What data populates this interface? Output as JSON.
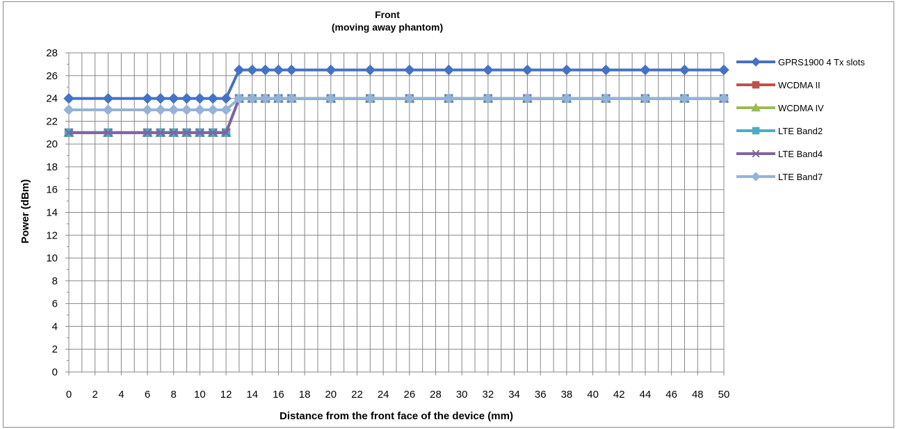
{
  "chart_data": {
    "type": "line",
    "title": "Front",
    "subtitle": "(moving away phantom)",
    "xlabel": "Distance from the front face of the device (mm)",
    "ylabel": "Power (dBm)",
    "x": [
      0,
      3,
      6,
      7,
      8,
      9,
      10,
      11,
      12,
      13,
      14,
      15,
      16,
      17,
      20,
      23,
      26,
      29,
      32,
      35,
      38,
      41,
      44,
      47,
      50
    ],
    "x_tick_labels": [
      "0",
      "2",
      "4",
      "6",
      "8",
      "10",
      "12",
      "14",
      "16",
      "18",
      "20",
      "22",
      "24",
      "26",
      "28",
      "30",
      "32",
      "34",
      "36",
      "38",
      "40",
      "42",
      "44",
      "46",
      "48",
      "50"
    ],
    "ylim": [
      0,
      28
    ],
    "y_tick_labels": [
      "0",
      "2",
      "4",
      "6",
      "8",
      "10",
      "12",
      "14",
      "16",
      "18",
      "20",
      "22",
      "24",
      "26",
      "28"
    ],
    "grid": true,
    "legend_position": "right",
    "series": [
      {
        "name": "GPRS1900  4 Tx slots",
        "color": "#4472C4",
        "marker": "diamond",
        "values": [
          24,
          24,
          24,
          24,
          24,
          24,
          24,
          24,
          24,
          26.5,
          26.5,
          26.5,
          26.5,
          26.5,
          26.5,
          26.5,
          26.5,
          26.5,
          26.5,
          26.5,
          26.5,
          26.5,
          26.5,
          26.5,
          26.5
        ]
      },
      {
        "name": "WCDMA II",
        "color": "#C0504D",
        "marker": "square",
        "values": [
          21,
          21,
          21,
          21,
          21,
          21,
          21,
          21,
          21,
          24,
          24,
          24,
          24,
          24,
          24,
          24,
          24,
          24,
          24,
          24,
          24,
          24,
          24,
          24,
          24
        ]
      },
      {
        "name": "WCDMA IV",
        "color": "#9BBB59",
        "marker": "triangle",
        "values": [
          21,
          21,
          21,
          21,
          21,
          21,
          21,
          21,
          21,
          24,
          24,
          24,
          24,
          24,
          24,
          24,
          24,
          24,
          24,
          24,
          24,
          24,
          24,
          24,
          24
        ]
      },
      {
        "name": "LTE Band2",
        "color": "#4BACC6",
        "marker": "square",
        "values": [
          21,
          21,
          21,
          21,
          21,
          21,
          21,
          21,
          21,
          24,
          24,
          24,
          24,
          24,
          24,
          24,
          24,
          24,
          24,
          24,
          24,
          24,
          24,
          24,
          24
        ]
      },
      {
        "name": "LTE Band4",
        "color": "#8064A2",
        "marker": "x",
        "values": [
          21,
          21,
          21,
          21,
          21,
          21,
          21,
          21,
          21,
          24,
          24,
          24,
          24,
          24,
          24,
          24,
          24,
          24,
          24,
          24,
          24,
          24,
          24,
          24,
          24
        ]
      },
      {
        "name": "LTE Band7",
        "color": "#95B3D7",
        "marker": "diamond",
        "values": [
          23,
          23,
          23,
          23,
          23,
          23,
          23,
          23,
          23,
          24,
          24,
          24,
          24,
          24,
          24,
          24,
          24,
          24,
          24,
          24,
          24,
          24,
          24,
          24,
          24
        ]
      }
    ]
  }
}
